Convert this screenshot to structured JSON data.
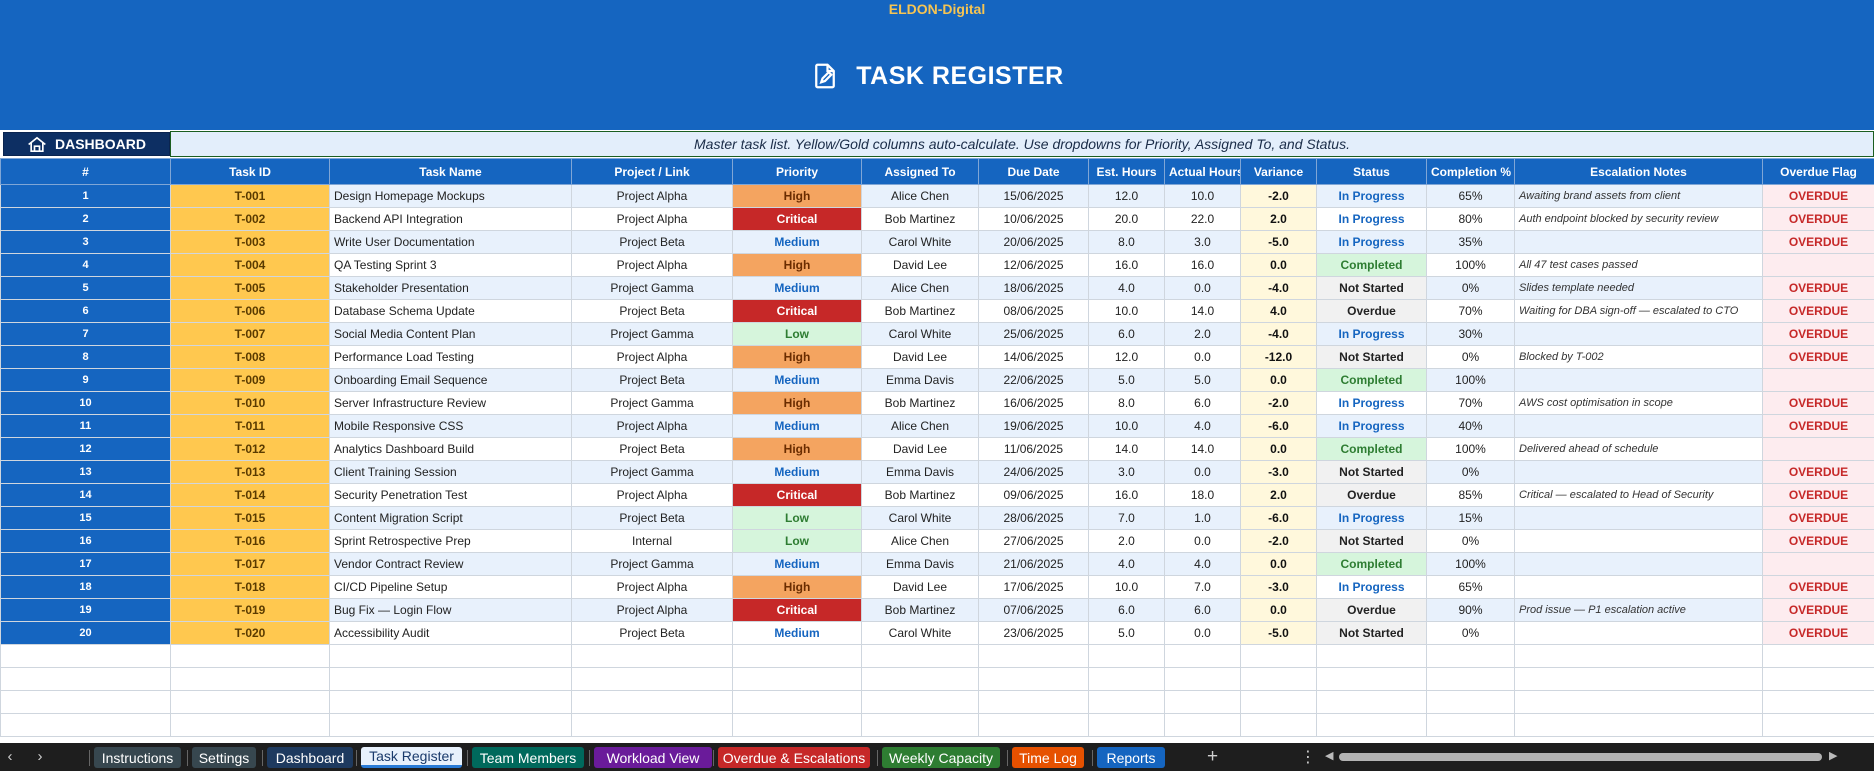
{
  "header": {
    "brand": "ELDON-Digital",
    "title": "TASK REGISTER",
    "dashboard_button": "DASHBOARD",
    "notice": "Master task list. Yellow/Gold columns auto-calculate. Use dropdowns for Priority, Assigned To, and Status."
  },
  "columns": [
    "#",
    "Task ID",
    "Task Name",
    "Project / Link",
    "Priority",
    "Assigned To",
    "Due Date",
    "Est. Hours",
    "Actual Hours",
    "Variance",
    "Status",
    "Completion %",
    "Escalation Notes",
    "Overdue Flag"
  ],
  "rows": [
    {
      "n": "1",
      "id": "T-001",
      "name": "Design Homepage Mockups",
      "project": "Project Alpha",
      "priority": "High",
      "assigned": "Alice Chen",
      "due": "15/06/2025",
      "est": "12.0",
      "actual": "10.0",
      "variance": "-2.0",
      "status": "In Progress",
      "completion": "65%",
      "notes": "Awaiting brand assets from client",
      "flag": "OVERDUE"
    },
    {
      "n": "2",
      "id": "T-002",
      "name": "Backend API Integration",
      "project": "Project Alpha",
      "priority": "Critical",
      "assigned": "Bob Martinez",
      "due": "10/06/2025",
      "est": "20.0",
      "actual": "22.0",
      "variance": "2.0",
      "status": "In Progress",
      "completion": "80%",
      "notes": "Auth endpoint blocked by security review",
      "flag": "OVERDUE"
    },
    {
      "n": "3",
      "id": "T-003",
      "name": "Write User Documentation",
      "project": "Project Beta",
      "priority": "Medium",
      "assigned": "Carol White",
      "due": "20/06/2025",
      "est": "8.0",
      "actual": "3.0",
      "variance": "-5.0",
      "status": "In Progress",
      "completion": "35%",
      "notes": "",
      "flag": "OVERDUE"
    },
    {
      "n": "4",
      "id": "T-004",
      "name": "QA Testing Sprint 3",
      "project": "Project Alpha",
      "priority": "High",
      "assigned": "David Lee",
      "due": "12/06/2025",
      "est": "16.0",
      "actual": "16.0",
      "variance": "0.0",
      "status": "Completed",
      "completion": "100%",
      "notes": "All 47 test cases passed",
      "flag": ""
    },
    {
      "n": "5",
      "id": "T-005",
      "name": "Stakeholder Presentation",
      "project": "Project Gamma",
      "priority": "Medium",
      "assigned": "Alice Chen",
      "due": "18/06/2025",
      "est": "4.0",
      "actual": "0.0",
      "variance": "-4.0",
      "status": "Not Started",
      "completion": "0%",
      "notes": "Slides template needed",
      "flag": "OVERDUE"
    },
    {
      "n": "6",
      "id": "T-006",
      "name": "Database Schema Update",
      "project": "Project Beta",
      "priority": "Critical",
      "assigned": "Bob Martinez",
      "due": "08/06/2025",
      "est": "10.0",
      "actual": "14.0",
      "variance": "4.0",
      "status": "Overdue",
      "completion": "70%",
      "notes": "Waiting for DBA sign-off — escalated to CTO",
      "flag": "OVERDUE"
    },
    {
      "n": "7",
      "id": "T-007",
      "name": "Social Media Content Plan",
      "project": "Project Gamma",
      "priority": "Low",
      "assigned": "Carol White",
      "due": "25/06/2025",
      "est": "6.0",
      "actual": "2.0",
      "variance": "-4.0",
      "status": "In Progress",
      "completion": "30%",
      "notes": "",
      "flag": "OVERDUE"
    },
    {
      "n": "8",
      "id": "T-008",
      "name": "Performance Load Testing",
      "project": "Project Alpha",
      "priority": "High",
      "assigned": "David Lee",
      "due": "14/06/2025",
      "est": "12.0",
      "actual": "0.0",
      "variance": "-12.0",
      "status": "Not Started",
      "completion": "0%",
      "notes": "Blocked by T-002",
      "flag": "OVERDUE"
    },
    {
      "n": "9",
      "id": "T-009",
      "name": "Onboarding Email Sequence",
      "project": "Project Beta",
      "priority": "Medium",
      "assigned": "Emma Davis",
      "due": "22/06/2025",
      "est": "5.0",
      "actual": "5.0",
      "variance": "0.0",
      "status": "Completed",
      "completion": "100%",
      "notes": "",
      "flag": ""
    },
    {
      "n": "10",
      "id": "T-010",
      "name": "Server Infrastructure Review",
      "project": "Project Gamma",
      "priority": "High",
      "assigned": "Bob Martinez",
      "due": "16/06/2025",
      "est": "8.0",
      "actual": "6.0",
      "variance": "-2.0",
      "status": "In Progress",
      "completion": "70%",
      "notes": "AWS cost optimisation in scope",
      "flag": "OVERDUE"
    },
    {
      "n": "11",
      "id": "T-011",
      "name": "Mobile Responsive CSS",
      "project": "Project Alpha",
      "priority": "Medium",
      "assigned": "Alice Chen",
      "due": "19/06/2025",
      "est": "10.0",
      "actual": "4.0",
      "variance": "-6.0",
      "status": "In Progress",
      "completion": "40%",
      "notes": "",
      "flag": "OVERDUE"
    },
    {
      "n": "12",
      "id": "T-012",
      "name": "Analytics Dashboard Build",
      "project": "Project Beta",
      "priority": "High",
      "assigned": "David Lee",
      "due": "11/06/2025",
      "est": "14.0",
      "actual": "14.0",
      "variance": "0.0",
      "status": "Completed",
      "completion": "100%",
      "notes": "Delivered ahead of schedule",
      "flag": ""
    },
    {
      "n": "13",
      "id": "T-013",
      "name": "Client Training Session",
      "project": "Project Gamma",
      "priority": "Medium",
      "assigned": "Emma Davis",
      "due": "24/06/2025",
      "est": "3.0",
      "actual": "0.0",
      "variance": "-3.0",
      "status": "Not Started",
      "completion": "0%",
      "notes": "",
      "flag": "OVERDUE"
    },
    {
      "n": "14",
      "id": "T-014",
      "name": "Security Penetration Test",
      "project": "Project Alpha",
      "priority": "Critical",
      "assigned": "Bob Martinez",
      "due": "09/06/2025",
      "est": "16.0",
      "actual": "18.0",
      "variance": "2.0",
      "status": "Overdue",
      "completion": "85%",
      "notes": "Critical — escalated to Head of Security",
      "flag": "OVERDUE"
    },
    {
      "n": "15",
      "id": "T-015",
      "name": "Content Migration Script",
      "project": "Project Beta",
      "priority": "Low",
      "assigned": "Carol White",
      "due": "28/06/2025",
      "est": "7.0",
      "actual": "1.0",
      "variance": "-6.0",
      "status": "In Progress",
      "completion": "15%",
      "notes": "",
      "flag": "OVERDUE"
    },
    {
      "n": "16",
      "id": "T-016",
      "name": "Sprint Retrospective Prep",
      "project": "Internal",
      "priority": "Low",
      "assigned": "Alice Chen",
      "due": "27/06/2025",
      "est": "2.0",
      "actual": "0.0",
      "variance": "-2.0",
      "status": "Not Started",
      "completion": "0%",
      "notes": "",
      "flag": "OVERDUE"
    },
    {
      "n": "17",
      "id": "T-017",
      "name": "Vendor Contract Review",
      "project": "Project Gamma",
      "priority": "Medium",
      "assigned": "Emma Davis",
      "due": "21/06/2025",
      "est": "4.0",
      "actual": "4.0",
      "variance": "0.0",
      "status": "Completed",
      "completion": "100%",
      "notes": "",
      "flag": ""
    },
    {
      "n": "18",
      "id": "T-018",
      "name": "CI/CD Pipeline Setup",
      "project": "Project Alpha",
      "priority": "High",
      "assigned": "David Lee",
      "due": "17/06/2025",
      "est": "10.0",
      "actual": "7.0",
      "variance": "-3.0",
      "status": "In Progress",
      "completion": "65%",
      "notes": "",
      "flag": "OVERDUE"
    },
    {
      "n": "19",
      "id": "T-019",
      "name": "Bug Fix — Login Flow",
      "project": "Project Alpha",
      "priority": "Critical",
      "assigned": "Bob Martinez",
      "due": "07/06/2025",
      "est": "6.0",
      "actual": "6.0",
      "variance": "0.0",
      "status": "Overdue",
      "completion": "90%",
      "notes": "Prod issue — P1 escalation active",
      "flag": "OVERDUE"
    },
    {
      "n": "20",
      "id": "T-020",
      "name": "Accessibility Audit",
      "project": "Project Beta",
      "priority": "Medium",
      "assigned": "Carol White",
      "due": "23/06/2025",
      "est": "5.0",
      "actual": "0.0",
      "variance": "-5.0",
      "status": "Not Started",
      "completion": "0%",
      "notes": "",
      "flag": "OVERDUE"
    }
  ],
  "sheet_tabs": [
    {
      "label": "Instructions",
      "color": "#37474f",
      "active": false
    },
    {
      "label": "Settings",
      "color": "#37474f",
      "active": false
    },
    {
      "label": "Dashboard",
      "color": "#1e3a5f",
      "active": false
    },
    {
      "label": "Task Register",
      "color": "#e8f1fc",
      "active": true
    },
    {
      "label": "Team Members",
      "color": "#00695c",
      "active": false
    },
    {
      "label": "Workload View",
      "color": "#6a1b9a",
      "active": false
    },
    {
      "label": "Overdue & Escalations",
      "color": "#c62828",
      "active": false
    },
    {
      "label": "Weekly Capacity",
      "color": "#2e7d32",
      "active": false
    },
    {
      "label": "Time Log",
      "color": "#e65100",
      "active": false
    },
    {
      "label": "Reports",
      "color": "#1565c0",
      "active": false
    }
  ],
  "icons": {
    "title": "document-edit-icon",
    "dashboard": "home-icon",
    "prev": "chevron-left-icon",
    "next": "chevron-right-icon",
    "add": "plus-icon",
    "more": "more-vertical-icon"
  },
  "colors": {
    "header_blue": "#1565c0",
    "gold": "#ffc84f",
    "brand_gold": "#f5c453",
    "critical": "#c62828",
    "high": "#f4a460",
    "low": "#d6f5dc"
  }
}
